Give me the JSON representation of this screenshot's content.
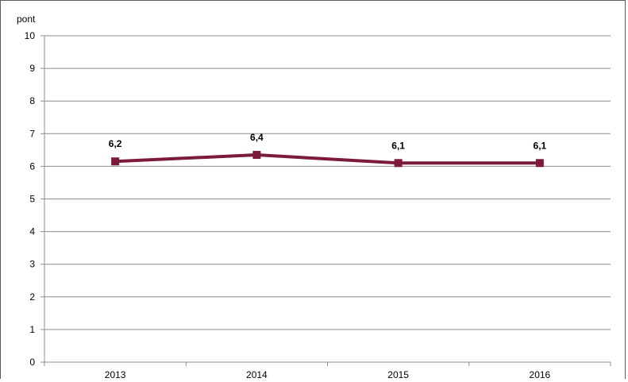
{
  "chart_data": {
    "type": "line",
    "ylabel": "pont",
    "xlabel": "",
    "categories": [
      "2013",
      "2014",
      "2015",
      "2016"
    ],
    "series": [
      {
        "values": [
          6.15,
          6.35,
          6.1,
          6.1
        ],
        "data_labels": [
          "6,2",
          "6,4",
          "6,1",
          "6,1"
        ],
        "color": "#7b1a3a",
        "marker": "square"
      }
    ],
    "ylim": [
      0,
      10
    ],
    "yticks": [
      "0",
      "1",
      "2",
      "3",
      "4",
      "5",
      "6",
      "7",
      "8",
      "9",
      "10"
    ],
    "grid": true,
    "legend": "none"
  },
  "colors": {
    "gridline": "#8c8c8c",
    "axis": "#8c8c8c",
    "frame": "#5a5a5a",
    "series": "#7b1a3a"
  }
}
